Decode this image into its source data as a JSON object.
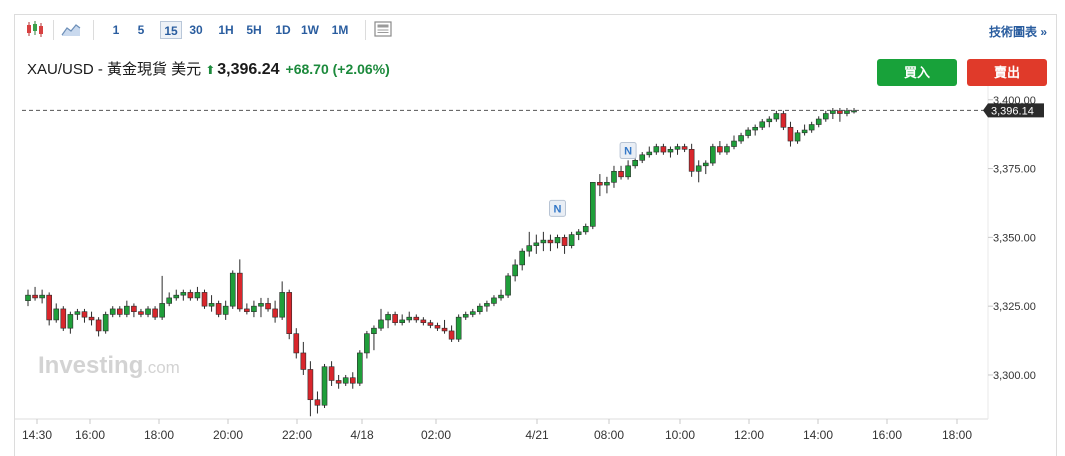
{
  "toolbar": {
    "intervals": [
      "1",
      "5",
      "15",
      "30",
      "1H",
      "5H",
      "1D",
      "1W",
      "1M"
    ],
    "active_interval": "15",
    "tech_link": "技術圖表 »"
  },
  "quote": {
    "symbol": "XAU/USD - 黃金現貨 美元",
    "price": "3,396.24",
    "change": "+68.70 (+2.06%)"
  },
  "buttons": {
    "buy": "買入",
    "sell": "賣出"
  },
  "watermark": {
    "brand": "Investing",
    "suffix": ".com"
  },
  "colors": {
    "up": "#1f9e3a",
    "down": "#d9262c",
    "accent": "#2a5d9f"
  },
  "chart_data": {
    "type": "candlestick",
    "ylim": [
      3284,
      3405
    ],
    "y_ticks": [
      3300,
      3325,
      3350,
      3375,
      3400
    ],
    "y_tick_labels": [
      "3,300.00",
      "3,325.00",
      "3,350.00",
      "3,375.00",
      "3,400.00"
    ],
    "last_price": 3396.14,
    "last_price_label": "3,396.14",
    "x_tick_labels": [
      "14:30",
      "16:00",
      "18:00",
      "20:00",
      "22:00",
      "4/18",
      "02:00",
      "4/21",
      "08:00",
      "10:00",
      "12:00",
      "14:00",
      "16:00",
      "18:00"
    ],
    "news_markers": [
      {
        "label": "N",
        "index": 75,
        "price": 3354
      },
      {
        "label": "N",
        "index": 85,
        "price": 3375
      }
    ],
    "candles": [
      {
        "o": 3327,
        "h": 3331,
        "l": 3325,
        "c": 3329
      },
      {
        "o": 3329,
        "h": 3332,
        "l": 3327,
        "c": 3328
      },
      {
        "o": 3328,
        "h": 3331,
        "l": 3326,
        "c": 3329
      },
      {
        "o": 3329,
        "h": 3330,
        "l": 3318,
        "c": 3320
      },
      {
        "o": 3320,
        "h": 3326,
        "l": 3319,
        "c": 3324
      },
      {
        "o": 3324,
        "h": 3325,
        "l": 3316,
        "c": 3317
      },
      {
        "o": 3317,
        "h": 3323,
        "l": 3315,
        "c": 3322
      },
      {
        "o": 3322,
        "h": 3324,
        "l": 3320,
        "c": 3323
      },
      {
        "o": 3323,
        "h": 3324,
        "l": 3319,
        "c": 3321
      },
      {
        "o": 3321,
        "h": 3323,
        "l": 3318,
        "c": 3320
      },
      {
        "o": 3320,
        "h": 3321,
        "l": 3314,
        "c": 3316
      },
      {
        "o": 3316,
        "h": 3323,
        "l": 3315,
        "c": 3322
      },
      {
        "o": 3322,
        "h": 3325,
        "l": 3321,
        "c": 3324
      },
      {
        "o": 3324,
        "h": 3325,
        "l": 3321,
        "c": 3322
      },
      {
        "o": 3322,
        "h": 3327,
        "l": 3321,
        "c": 3325
      },
      {
        "o": 3325,
        "h": 3326,
        "l": 3321,
        "c": 3323
      },
      {
        "o": 3323,
        "h": 3324,
        "l": 3321,
        "c": 3322
      },
      {
        "o": 3322,
        "h": 3325,
        "l": 3321,
        "c": 3324
      },
      {
        "o": 3324,
        "h": 3325,
        "l": 3320,
        "c": 3321
      },
      {
        "o": 3321,
        "h": 3336,
        "l": 3320,
        "c": 3326
      },
      {
        "o": 3326,
        "h": 3330,
        "l": 3325,
        "c": 3328
      },
      {
        "o": 3328,
        "h": 3331,
        "l": 3327,
        "c": 3329
      },
      {
        "o": 3329,
        "h": 3331,
        "l": 3327,
        "c": 3330
      },
      {
        "o": 3330,
        "h": 3331,
        "l": 3327,
        "c": 3328
      },
      {
        "o": 3328,
        "h": 3332,
        "l": 3327,
        "c": 3330
      },
      {
        "o": 3330,
        "h": 3331,
        "l": 3324,
        "c": 3325
      },
      {
        "o": 3325,
        "h": 3329,
        "l": 3323,
        "c": 3326
      },
      {
        "o": 3326,
        "h": 3327,
        "l": 3321,
        "c": 3322
      },
      {
        "o": 3322,
        "h": 3327,
        "l": 3320,
        "c": 3325
      },
      {
        "o": 3325,
        "h": 3338,
        "l": 3324,
        "c": 3337
      },
      {
        "o": 3337,
        "h": 3342,
        "l": 3323,
        "c": 3324
      },
      {
        "o": 3324,
        "h": 3326,
        "l": 3322,
        "c": 3323
      },
      {
        "o": 3323,
        "h": 3327,
        "l": 3321,
        "c": 3325
      },
      {
        "o": 3325,
        "h": 3328,
        "l": 3321,
        "c": 3326
      },
      {
        "o": 3326,
        "h": 3328,
        "l": 3323,
        "c": 3324
      },
      {
        "o": 3324,
        "h": 3327,
        "l": 3319,
        "c": 3321
      },
      {
        "o": 3321,
        "h": 3334,
        "l": 3320,
        "c": 3330
      },
      {
        "o": 3330,
        "h": 3331,
        "l": 3313,
        "c": 3315
      },
      {
        "o": 3315,
        "h": 3317,
        "l": 3306,
        "c": 3308
      },
      {
        "o": 3308,
        "h": 3312,
        "l": 3300,
        "c": 3302
      },
      {
        "o": 3302,
        "h": 3305,
        "l": 3285,
        "c": 3291
      },
      {
        "o": 3291,
        "h": 3294,
        "l": 3286,
        "c": 3289
      },
      {
        "o": 3289,
        "h": 3304,
        "l": 3288,
        "c": 3303
      },
      {
        "o": 3303,
        "h": 3305,
        "l": 3296,
        "c": 3298
      },
      {
        "o": 3298,
        "h": 3300,
        "l": 3295,
        "c": 3297
      },
      {
        "o": 3297,
        "h": 3300,
        "l": 3296,
        "c": 3299
      },
      {
        "o": 3299,
        "h": 3301,
        "l": 3295,
        "c": 3297
      },
      {
        "o": 3297,
        "h": 3309,
        "l": 3296,
        "c": 3308
      },
      {
        "o": 3308,
        "h": 3316,
        "l": 3306,
        "c": 3315
      },
      {
        "o": 3315,
        "h": 3318,
        "l": 3309,
        "c": 3317
      },
      {
        "o": 3317,
        "h": 3324,
        "l": 3316,
        "c": 3320
      },
      {
        "o": 3320,
        "h": 3323,
        "l": 3317,
        "c": 3322
      },
      {
        "o": 3322,
        "h": 3323,
        "l": 3318,
        "c": 3319
      },
      {
        "o": 3319,
        "h": 3322,
        "l": 3318,
        "c": 3320
      },
      {
        "o": 3320,
        "h": 3323,
        "l": 3319,
        "c": 3321
      },
      {
        "o": 3321,
        "h": 3322,
        "l": 3319,
        "c": 3320
      },
      {
        "o": 3320,
        "h": 3321,
        "l": 3318,
        "c": 3319
      },
      {
        "o": 3319,
        "h": 3320,
        "l": 3317,
        "c": 3318
      },
      {
        "o": 3318,
        "h": 3319,
        "l": 3316,
        "c": 3317
      },
      {
        "o": 3317,
        "h": 3320,
        "l": 3315,
        "c": 3316
      },
      {
        "o": 3316,
        "h": 3318,
        "l": 3312,
        "c": 3313
      },
      {
        "o": 3313,
        "h": 3322,
        "l": 3312,
        "c": 3321
      },
      {
        "o": 3321,
        "h": 3323,
        "l": 3320,
        "c": 3322
      },
      {
        "o": 3322,
        "h": 3324,
        "l": 3321,
        "c": 3323
      },
      {
        "o": 3323,
        "h": 3326,
        "l": 3322,
        "c": 3325
      },
      {
        "o": 3325,
        "h": 3327,
        "l": 3323,
        "c": 3326
      },
      {
        "o": 3326,
        "h": 3329,
        "l": 3325,
        "c": 3328
      },
      {
        "o": 3328,
        "h": 3331,
        "l": 3327,
        "c": 3329
      },
      {
        "o": 3329,
        "h": 3337,
        "l": 3328,
        "c": 3336
      },
      {
        "o": 3336,
        "h": 3342,
        "l": 3334,
        "c": 3340
      },
      {
        "o": 3340,
        "h": 3346,
        "l": 3338,
        "c": 3345
      },
      {
        "o": 3345,
        "h": 3352,
        "l": 3343,
        "c": 3347
      },
      {
        "o": 3347,
        "h": 3351,
        "l": 3344,
        "c": 3348
      },
      {
        "o": 3348,
        "h": 3352,
        "l": 3345,
        "c": 3349
      },
      {
        "o": 3349,
        "h": 3351,
        "l": 3345,
        "c": 3348
      },
      {
        "o": 3348,
        "h": 3351,
        "l": 3346,
        "c": 3350
      },
      {
        "o": 3350,
        "h": 3351,
        "l": 3344,
        "c": 3347
      },
      {
        "o": 3347,
        "h": 3352,
        "l": 3346,
        "c": 3351
      },
      {
        "o": 3351,
        "h": 3353,
        "l": 3349,
        "c": 3352
      },
      {
        "o": 3352,
        "h": 3355,
        "l": 3351,
        "c": 3354
      },
      {
        "o": 3354,
        "h": 3370,
        "l": 3353,
        "c": 3370
      },
      {
        "o": 3370,
        "h": 3373,
        "l": 3365,
        "c": 3369
      },
      {
        "o": 3369,
        "h": 3372,
        "l": 3366,
        "c": 3370
      },
      {
        "o": 3370,
        "h": 3376,
        "l": 3368,
        "c": 3374
      },
      {
        "o": 3374,
        "h": 3376,
        "l": 3371,
        "c": 3372
      },
      {
        "o": 3372,
        "h": 3378,
        "l": 3371,
        "c": 3376
      },
      {
        "o": 3376,
        "h": 3380,
        "l": 3375,
        "c": 3378
      },
      {
        "o": 3378,
        "h": 3381,
        "l": 3377,
        "c": 3380
      },
      {
        "o": 3380,
        "h": 3383,
        "l": 3379,
        "c": 3381
      },
      {
        "o": 3381,
        "h": 3384,
        "l": 3380,
        "c": 3383
      },
      {
        "o": 3383,
        "h": 3384,
        "l": 3380,
        "c": 3381
      },
      {
        "o": 3381,
        "h": 3383,
        "l": 3379,
        "c": 3382
      },
      {
        "o": 3382,
        "h": 3384,
        "l": 3380,
        "c": 3383
      },
      {
        "o": 3383,
        "h": 3384,
        "l": 3381,
        "c": 3382
      },
      {
        "o": 3382,
        "h": 3384,
        "l": 3372,
        "c": 3374
      },
      {
        "o": 3374,
        "h": 3378,
        "l": 3370,
        "c": 3376
      },
      {
        "o": 3376,
        "h": 3378,
        "l": 3373,
        "c": 3377
      },
      {
        "o": 3377,
        "h": 3384,
        "l": 3376,
        "c": 3383
      },
      {
        "o": 3383,
        "h": 3385,
        "l": 3380,
        "c": 3381
      },
      {
        "o": 3381,
        "h": 3384,
        "l": 3380,
        "c": 3383
      },
      {
        "o": 3383,
        "h": 3387,
        "l": 3382,
        "c": 3385
      },
      {
        "o": 3385,
        "h": 3388,
        "l": 3384,
        "c": 3387
      },
      {
        "o": 3387,
        "h": 3390,
        "l": 3386,
        "c": 3389
      },
      {
        "o": 3389,
        "h": 3391,
        "l": 3387,
        "c": 3390
      },
      {
        "o": 3390,
        "h": 3393,
        "l": 3389,
        "c": 3392
      },
      {
        "o": 3392,
        "h": 3394,
        "l": 3390,
        "c": 3393
      },
      {
        "o": 3393,
        "h": 3396,
        "l": 3392,
        "c": 3395
      },
      {
        "o": 3395,
        "h": 3396,
        "l": 3389,
        "c": 3390
      },
      {
        "o": 3390,
        "h": 3392,
        "l": 3383,
        "c": 3385
      },
      {
        "o": 3385,
        "h": 3389,
        "l": 3384,
        "c": 3388
      },
      {
        "o": 3388,
        "h": 3391,
        "l": 3387,
        "c": 3389
      },
      {
        "o": 3389,
        "h": 3392,
        "l": 3388,
        "c": 3391
      },
      {
        "o": 3391,
        "h": 3394,
        "l": 3390,
        "c": 3393
      },
      {
        "o": 3393,
        "h": 3396,
        "l": 3392,
        "c": 3395
      },
      {
        "o": 3395,
        "h": 3397,
        "l": 3393,
        "c": 3396
      },
      {
        "o": 3396,
        "h": 3397,
        "l": 3392,
        "c": 3395
      },
      {
        "o": 3395,
        "h": 3397,
        "l": 3394,
        "c": 3396
      },
      {
        "o": 3396,
        "h": 3397,
        "l": 3395,
        "c": 3396
      }
    ]
  }
}
